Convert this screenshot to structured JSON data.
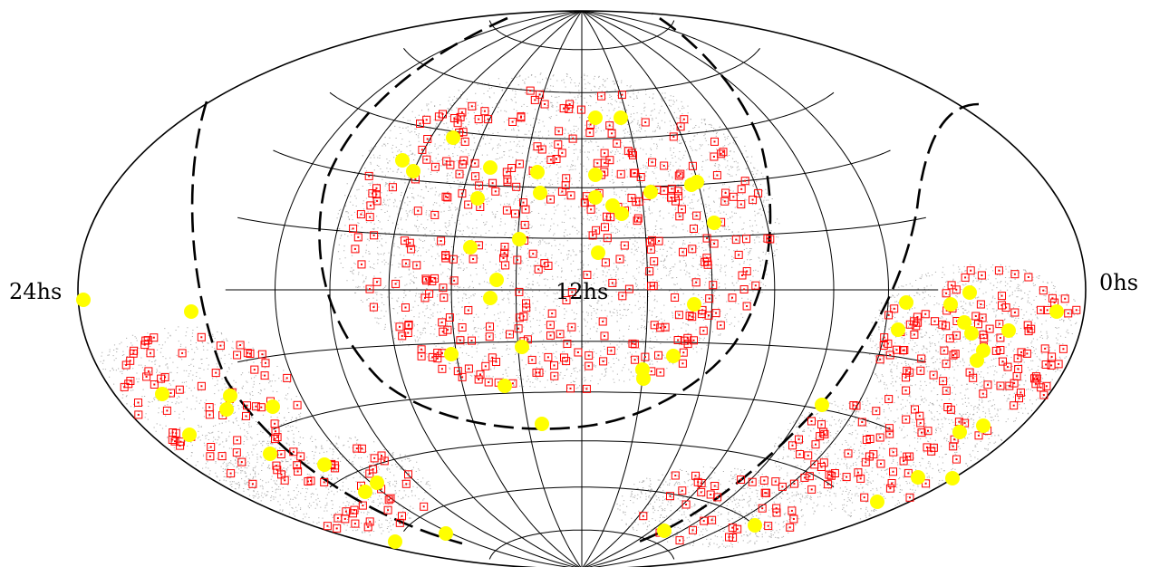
{
  "labels": {
    "left": "24hs",
    "center": "12hs",
    "right": "0hs"
  },
  "colors": {
    "background": "#ffffff",
    "graticule": "#000000",
    "survey_points": "#6e6e6e",
    "square_markers": "#ff0000",
    "dot_markers": "#ffff00",
    "dashed_curve": "#000000"
  },
  "projection": "hammer-aitoff"
}
